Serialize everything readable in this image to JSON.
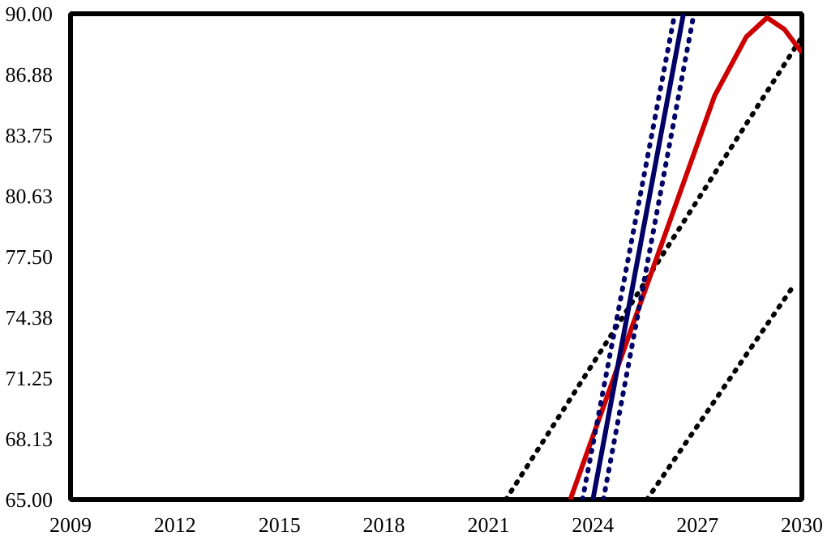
{
  "chart_data": {
    "type": "line",
    "xlim": [
      2009,
      2030
    ],
    "ylim": [
      65,
      90
    ],
    "xticks": [
      2009,
      2012,
      2015,
      2018,
      2021,
      2024,
      2027,
      2030
    ],
    "yticks": [
      {
        "value": 65,
        "label": "65.00"
      },
      {
        "value": 68.125,
        "label": "68.13"
      },
      {
        "value": 71.25,
        "label": "71.25"
      },
      {
        "value": 74.375,
        "label": "74.38"
      },
      {
        "value": 77.5,
        "label": "77.50"
      },
      {
        "value": 80.625,
        "label": "80.63"
      },
      {
        "value": 83.75,
        "label": "83.75"
      },
      {
        "value": 86.875,
        "label": "86.88"
      },
      {
        "value": 90,
        "label": "90.00"
      }
    ],
    "grid": false,
    "marker": "none",
    "series": [
      {
        "color": "#000000",
        "line_style": "dotted",
        "x": [
          2021.5,
          2030
        ],
        "values": [
          65,
          88.8
        ]
      },
      {
        "color": "#000000",
        "line_style": "dotted",
        "x": [
          2025.55,
          2029.8
        ],
        "values": [
          65,
          76.1
        ]
      },
      {
        "color": "#cc0000",
        "line_style": "solid",
        "x": [
          2023.35,
          2027.5,
          2028.4,
          2029.0,
          2029.5,
          2030
        ],
        "values": [
          65,
          85.8,
          88.8,
          89.8,
          89.2,
          88.0
        ]
      },
      {
        "color": "#000066",
        "line_style": "dotted",
        "x": [
          2023.7,
          2026.35
        ],
        "values": [
          65,
          90
        ]
      },
      {
        "color": "#000066",
        "line_style": "dotted",
        "x": [
          2024.3,
          2026.9
        ],
        "values": [
          65,
          90
        ]
      },
      {
        "color": "#000066",
        "line_style": "solid",
        "x": [
          2024.0,
          2026.6
        ],
        "values": [
          65,
          90
        ]
      }
    ]
  }
}
